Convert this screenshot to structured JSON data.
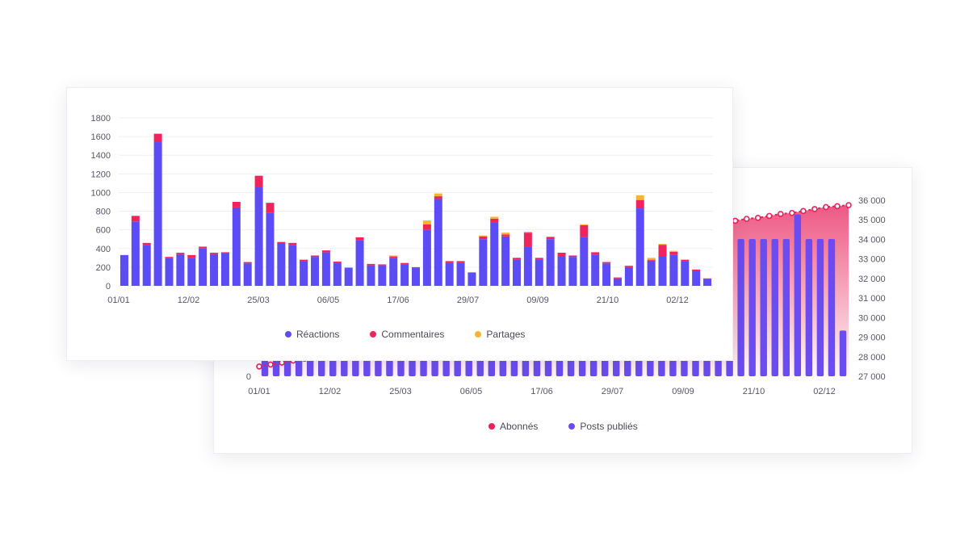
{
  "colors": {
    "reactions": "#5b4cf5",
    "comments": "#f0245d",
    "shares": "#f9b233",
    "subscribers": "#e8215a",
    "posts": "#6a4cf0",
    "grid": "#eeeff4"
  },
  "chart_data": [
    {
      "type": "bar",
      "stacked": true,
      "title": "",
      "x_tick_labels": [
        "01/01",
        "12/02",
        "25/03",
        "06/05",
        "17/06",
        "29/07",
        "09/09",
        "21/10",
        "02/12"
      ],
      "y_tick_labels": [
        "0",
        "200",
        "400",
        "600",
        "800",
        "1000",
        "1200",
        "1400",
        "1600",
        "1800"
      ],
      "ylim": [
        0,
        1800
      ],
      "grid": true,
      "legend_position": "bottom",
      "legend": [
        "Réactions",
        "Commentaires",
        "Partages"
      ],
      "series": [
        {
          "name": "Réactions",
          "values": [
            330,
            690,
            440,
            1540,
            300,
            340,
            300,
            400,
            340,
            350,
            840,
            240,
            1060,
            780,
            450,
            440,
            260,
            310,
            360,
            250,
            190,
            490,
            220,
            220,
            300,
            230,
            190,
            600,
            930,
            250,
            250,
            140,
            500,
            680,
            530,
            280,
            420,
            280,
            500,
            320,
            310,
            520,
            330,
            240,
            80,
            200,
            830,
            270,
            320,
            330,
            260,
            160,
            70
          ]
        },
        {
          "name": "Commentaires",
          "values": [
            0,
            60,
            20,
            90,
            10,
            15,
            30,
            20,
            15,
            10,
            60,
            15,
            120,
            110,
            20,
            20,
            20,
            15,
            20,
            10,
            5,
            30,
            15,
            10,
            15,
            15,
            10,
            60,
            30,
            15,
            15,
            5,
            30,
            40,
            20,
            20,
            150,
            20,
            25,
            35,
            15,
            130,
            30,
            15,
            10,
            15,
            90,
            10,
            120,
            35,
            20,
            15,
            10
          ]
        },
        {
          "name": "Partages",
          "values": [
            0,
            0,
            0,
            0,
            0,
            0,
            0,
            0,
            0,
            0,
            0,
            0,
            0,
            0,
            0,
            0,
            0,
            0,
            0,
            0,
            0,
            0,
            0,
            0,
            10,
            0,
            0,
            40,
            30,
            0,
            0,
            0,
            10,
            20,
            20,
            0,
            10,
            0,
            0,
            0,
            0,
            10,
            0,
            0,
            0,
            0,
            50,
            20,
            10,
            10,
            0,
            0,
            0
          ]
        }
      ]
    },
    {
      "type": "bar+line",
      "title": "",
      "x_tick_labels": [
        "01/01",
        "12/02",
        "25/03",
        "06/05",
        "17/06",
        "29/07",
        "09/09",
        "21/10",
        "02/12"
      ],
      "y_left_tick_labels": [
        "0"
      ],
      "y_right_tick_labels": [
        "27 000",
        "28 000",
        "29 000",
        "30 000",
        "31 000",
        "32 000",
        "33 000",
        "34 000",
        "35 000",
        "36 000"
      ],
      "y_right_lim": [
        27000,
        36000
      ],
      "legend_position": "bottom",
      "legend": [
        "Abonnés",
        "Posts publiés"
      ],
      "series": [
        {
          "name": "Abonnés",
          "type": "area-line",
          "axis": "right",
          "values": [
            27500,
            27600,
            27700,
            27800,
            27900,
            28000,
            28100,
            28200,
            28300,
            28400,
            28500,
            28600,
            28700,
            28800,
            28900,
            29000,
            29200,
            29400,
            29600,
            29800,
            30000,
            30200,
            30400,
            30600,
            30800,
            31000,
            31300,
            31600,
            31900,
            32200,
            32500,
            32800,
            33100,
            33400,
            33700,
            34000,
            34200,
            34400,
            34600,
            34800,
            34900,
            34850,
            34950,
            35050,
            35100,
            35200,
            35300,
            35350,
            35450,
            35550,
            35650,
            35700,
            35750
          ]
        },
        {
          "name": "Posts publiés",
          "type": "bar",
          "axis": "left",
          "values": [
            0.19,
            0.19,
            0.19,
            0.19,
            0.19,
            0.19,
            0.19,
            0.19,
            0.19,
            0.19,
            0.19,
            0.19,
            0.19,
            0.19,
            0.19,
            0.19,
            0.19,
            0.19,
            0.19,
            0.19,
            0.19,
            0.19,
            0.19,
            0.19,
            0.19,
            0.19,
            0.19,
            0.19,
            0.19,
            0.19,
            0.19,
            0.19,
            0.19,
            0.19,
            0.19,
            0.19,
            0.19,
            0.19,
            0.19,
            0.19,
            0.19,
            0.92,
            0.78,
            0.78,
            0.78,
            0.78,
            0.78,
            0.92,
            0.78,
            0.78,
            0.78,
            0.26
          ]
        }
      ]
    }
  ]
}
